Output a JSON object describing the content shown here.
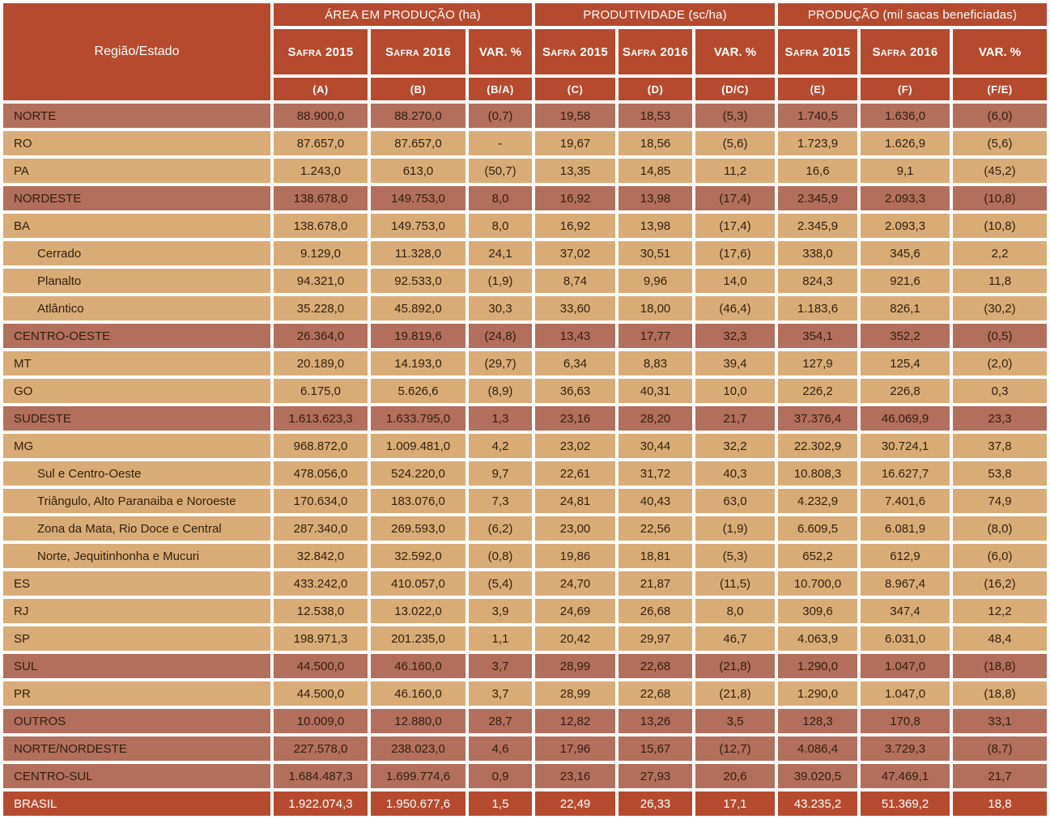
{
  "colors": {
    "header_red": "#b54a2e",
    "dark_row": "#b26f5b",
    "light_row": "#d9ac77",
    "total_row": "#b54a2e",
    "text": "#33200f",
    "grid": "#ffffff"
  },
  "table": {
    "region_header": "Região/Estado",
    "groups": [
      {
        "label": "ÁREA EM PRODUÇÃO (ha)",
        "cols": [
          "Safra 2015",
          "Safra 2016",
          "VAR. %"
        ],
        "letters": [
          "(A)",
          "(B)",
          "(B/A)"
        ]
      },
      {
        "label": "PRODUTIVIDADE (sc/ha)",
        "cols": [
          "Safra 2015",
          "Safra 2016",
          "VAR. %"
        ],
        "letters": [
          "(C)",
          "(D)",
          "(D/C)"
        ]
      },
      {
        "label": "PRODUÇÃO (mil sacas beneficiadas)",
        "cols": [
          "Safra 2015",
          "Safra 2016",
          "VAR. %"
        ],
        "letters": [
          "(E)",
          "(F)",
          "(F/E)"
        ]
      }
    ],
    "rows": [
      {
        "name": "NORTE",
        "style": "dark",
        "indent": false,
        "values": [
          "88.900,0",
          "88.270,0",
          "(0,7)",
          "19,58",
          "18,53",
          "(5,3)",
          "1.740,5",
          "1.636,0",
          "(6,0)"
        ]
      },
      {
        "name": "RO",
        "style": "light",
        "indent": false,
        "values": [
          "87.657,0",
          "87.657,0",
          "-",
          "19,67",
          "18,56",
          "(5,6)",
          "1.723,9",
          "1.626,9",
          "(5,6)"
        ]
      },
      {
        "name": "PA",
        "style": "light",
        "indent": false,
        "values": [
          "1.243,0",
          "613,0",
          "(50,7)",
          "13,35",
          "14,85",
          "11,2",
          "16,6",
          "9,1",
          "(45,2)"
        ]
      },
      {
        "name": "NORDESTE",
        "style": "dark",
        "indent": false,
        "values": [
          "138.678,0",
          "149.753,0",
          "8,0",
          "16,92",
          "13,98",
          "(17,4)",
          "2.345,9",
          "2.093,3",
          "(10,8)"
        ]
      },
      {
        "name": "BA",
        "style": "light",
        "indent": false,
        "values": [
          "138.678,0",
          "149.753,0",
          "8,0",
          "16,92",
          "13,98",
          "(17,4)",
          "2.345,9",
          "2.093,3",
          "(10,8)"
        ]
      },
      {
        "name": "Cerrado",
        "style": "light",
        "indent": true,
        "values": [
          "9.129,0",
          "11.328,0",
          "24,1",
          "37,02",
          "30,51",
          "(17,6)",
          "338,0",
          "345,6",
          "2,2"
        ]
      },
      {
        "name": "Planalto",
        "style": "light",
        "indent": true,
        "values": [
          "94.321,0",
          "92.533,0",
          "(1,9)",
          "8,74",
          "9,96",
          "14,0",
          "824,3",
          "921,6",
          "11,8"
        ]
      },
      {
        "name": "Atlântico",
        "style": "light",
        "indent": true,
        "values": [
          "35.228,0",
          "45.892,0",
          "30,3",
          "33,60",
          "18,00",
          "(46,4)",
          "1.183,6",
          "826,1",
          "(30,2)"
        ]
      },
      {
        "name": "CENTRO-OESTE",
        "style": "dark",
        "indent": false,
        "values": [
          "26.364,0",
          "19.819,6",
          "(24,8)",
          "13,43",
          "17,77",
          "32,3",
          "354,1",
          "352,2",
          "(0,5)"
        ]
      },
      {
        "name": "MT",
        "style": "light",
        "indent": false,
        "values": [
          "20.189,0",
          "14.193,0",
          "(29,7)",
          "6,34",
          "8,83",
          "39,4",
          "127,9",
          "125,4",
          "(2,0)"
        ]
      },
      {
        "name": "GO",
        "style": "light",
        "indent": false,
        "values": [
          "6.175,0",
          "5.626,6",
          "(8,9)",
          "36,63",
          "40,31",
          "10,0",
          "226,2",
          "226,8",
          "0,3"
        ]
      },
      {
        "name": "SUDESTE",
        "style": "dark",
        "indent": false,
        "values": [
          "1.613.623,3",
          "1.633.795,0",
          "1,3",
          "23,16",
          "28,20",
          "21,7",
          "37.376,4",
          "46.069,9",
          "23,3"
        ]
      },
      {
        "name": "MG",
        "style": "light",
        "indent": false,
        "values": [
          "968.872,0",
          "1.009.481,0",
          "4,2",
          "23,02",
          "30,44",
          "32,2",
          "22.302,9",
          "30.724,1",
          "37,8"
        ]
      },
      {
        "name": "Sul e Centro-Oeste",
        "style": "light",
        "indent": true,
        "values": [
          "478.056,0",
          "524.220,0",
          "9,7",
          "22,61",
          "31,72",
          "40,3",
          "10.808,3",
          "16.627,7",
          "53,8"
        ]
      },
      {
        "name": "Triângulo, Alto Paranaiba e Noroeste",
        "style": "light",
        "indent": true,
        "values": [
          "170.634,0",
          "183.076,0",
          "7,3",
          "24,81",
          "40,43",
          "63,0",
          "4.232,9",
          "7.401,6",
          "74,9"
        ]
      },
      {
        "name": "Zona da Mata, Rio Doce e Central",
        "style": "light",
        "indent": true,
        "values": [
          "287.340,0",
          "269.593,0",
          "(6,2)",
          "23,00",
          "22,56",
          "(1,9)",
          "6.609,5",
          "6.081,9",
          "(8,0)"
        ]
      },
      {
        "name": "Norte, Jequitinhonha e Mucuri",
        "style": "light",
        "indent": true,
        "values": [
          "32.842,0",
          "32.592,0",
          "(0,8)",
          "19,86",
          "18,81",
          "(5,3)",
          "652,2",
          "612,9",
          "(6,0)"
        ]
      },
      {
        "name": "ES",
        "style": "light",
        "indent": false,
        "values": [
          "433.242,0",
          "410.057,0",
          "(5,4)",
          "24,70",
          "21,87",
          "(11,5)",
          "10.700,0",
          "8.967,4",
          "(16,2)"
        ]
      },
      {
        "name": "RJ",
        "style": "light",
        "indent": false,
        "values": [
          "12.538,0",
          "13.022,0",
          "3,9",
          "24,69",
          "26,68",
          "8,0",
          "309,6",
          "347,4",
          "12,2"
        ]
      },
      {
        "name": "SP",
        "style": "light",
        "indent": false,
        "values": [
          "198.971,3",
          "201.235,0",
          "1,1",
          "20,42",
          "29,97",
          "46,7",
          "4.063,9",
          "6.031,0",
          "48,4"
        ]
      },
      {
        "name": "SUL",
        "style": "dark",
        "indent": false,
        "values": [
          "44.500,0",
          "46.160,0",
          "3,7",
          "28,99",
          "22,68",
          "(21,8)",
          "1.290,0",
          "1.047,0",
          "(18,8)"
        ]
      },
      {
        "name": "PR",
        "style": "light",
        "indent": false,
        "values": [
          "44.500,0",
          "46.160,0",
          "3,7",
          "28,99",
          "22,68",
          "(21,8)",
          "1.290,0",
          "1.047,0",
          "(18,8)"
        ]
      },
      {
        "name": "OUTROS",
        "style": "dark",
        "indent": false,
        "values": [
          "10.009,0",
          "12.880,0",
          "28,7",
          "12,82",
          "13,26",
          "3,5",
          "128,3",
          "170,8",
          "33,1"
        ]
      },
      {
        "name": "NORTE/NORDESTE",
        "style": "dark",
        "indent": false,
        "values": [
          "227.578,0",
          "238.023,0",
          "4,6",
          "17,96",
          "15,67",
          "(12,7)",
          "4.086,4",
          "3.729,3",
          "(8,7)"
        ]
      },
      {
        "name": "CENTRO-SUL",
        "style": "dark",
        "indent": false,
        "values": [
          "1.684.487,3",
          "1.699.774,6",
          "0,9",
          "23,16",
          "27,93",
          "20,6",
          "39.020,5",
          "47.469,1",
          "21,7"
        ]
      },
      {
        "name": "BRASIL",
        "style": "total",
        "indent": false,
        "values": [
          "1.922.074,3",
          "1.950.677,6",
          "1,5",
          "22,49",
          "26,33",
          "17,1",
          "43.235,2",
          "51.369,2",
          "18,8"
        ]
      }
    ]
  }
}
